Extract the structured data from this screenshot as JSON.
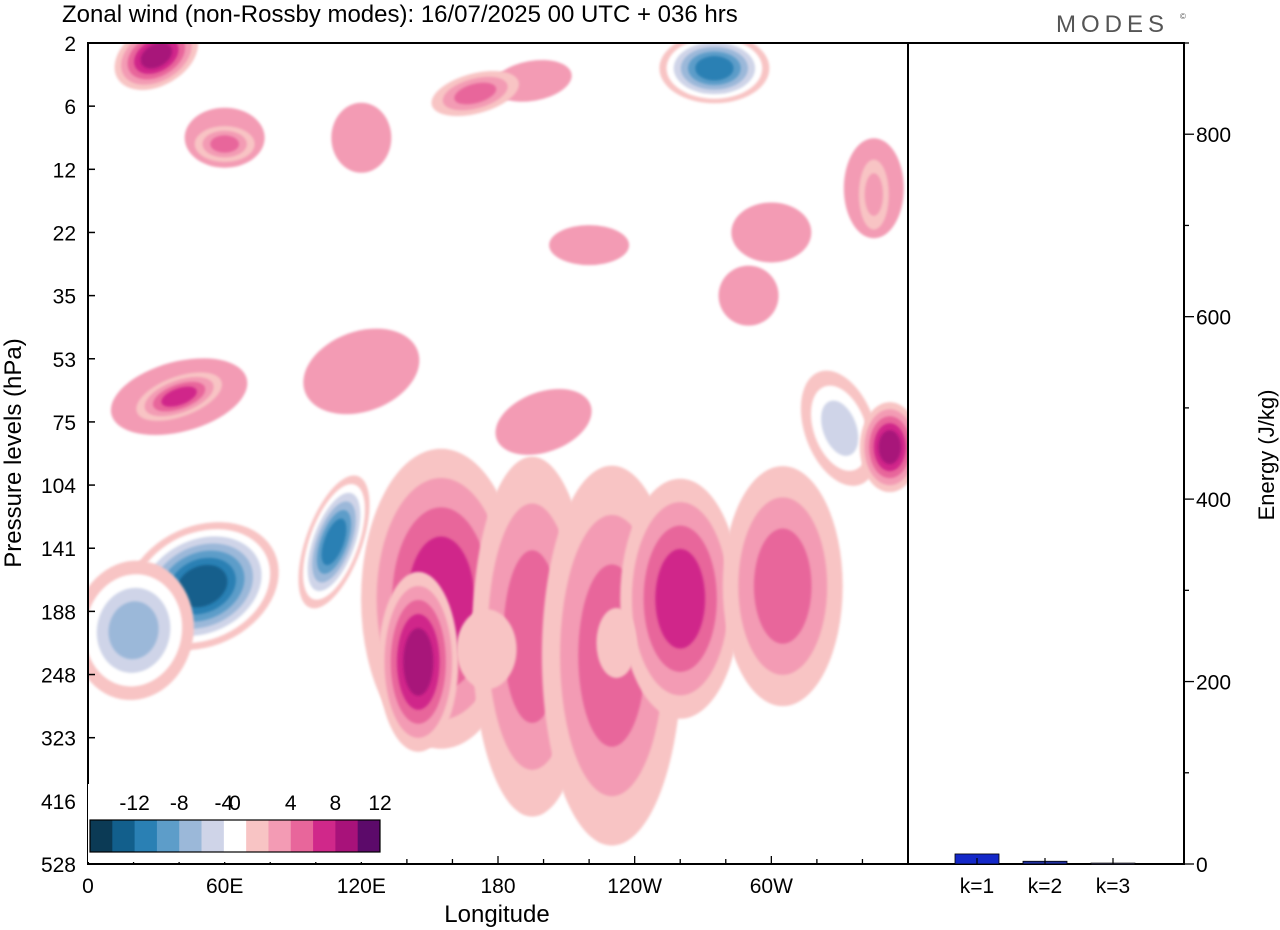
{
  "header": {
    "title": "Zonal wind (non-Rossby modes):  16/07/2025  00 UTC  + 036 hrs",
    "brand": "MODES",
    "brand_mark": "©"
  },
  "chart_data": [
    {
      "type": "heatmap",
      "title": "Zonal wind (non-Rossby modes):  16/07/2025  00 UTC  + 036 hrs",
      "xlabel": "Longitude",
      "ylabel": "Pressure levels (hPa)",
      "x_ticks": [
        "0",
        "60E",
        "120E",
        "180",
        "120W",
        "60W"
      ],
      "x_tick_values": [
        0,
        60,
        120,
        180,
        240,
        300
      ],
      "xlim": [
        0,
        360
      ],
      "y_ticks": [
        "2",
        "6",
        "12",
        "22",
        "35",
        "53",
        "75",
        "104",
        "141",
        "188",
        "248",
        "323",
        "416",
        "528"
      ],
      "y_scale": "model levels (top 2 hPa, bottom 528 hPa)",
      "colorbar": {
        "labels": [
          "-12",
          "-8",
          "-4",
          "0",
          "4",
          "8",
          "12"
        ],
        "levels": [
          -14,
          -12,
          -10,
          -8,
          -6,
          -4,
          -2,
          2,
          4,
          6,
          8,
          10,
          12,
          14
        ],
        "colors": [
          "#0b3a55",
          "#125f8c",
          "#2a80b4",
          "#5d9dc9",
          "#9bb8d9",
          "#cfd4e8",
          "#ffffff",
          "#f8c4c4",
          "#f39bb4",
          "#e8669b",
          "#d0288a",
          "#a8127a",
          "#5c0a6a"
        ],
        "location": "bottom-left"
      },
      "features": [
        {
          "kind": "negative-max",
          "lon": 55,
          "level": "141",
          "value": -14
        },
        {
          "kind": "negative-max",
          "lon": 108,
          "level": "141",
          "value": -12
        },
        {
          "kind": "positive-band",
          "lon_range": [
            130,
            320
          ],
          "level_range": [
            "104",
            "416"
          ],
          "value": 8
        },
        {
          "kind": "positive-max",
          "lon": 352,
          "level": "104",
          "value": 8
        },
        {
          "kind": "negative-max",
          "lon": 275,
          "level": "2",
          "value": -12
        },
        {
          "kind": "positive-max",
          "lon": 30,
          "level": "2",
          "value": 10
        }
      ]
    },
    {
      "type": "bar",
      "ylabel": "Energy (J/kg)",
      "categories": [
        "k=1",
        "k=2",
        "k=3"
      ],
      "values": [
        11,
        3,
        1
      ],
      "colors": [
        "#1428c8",
        "#2030a0",
        "#404060"
      ],
      "ylim": [
        0,
        900
      ],
      "y_ticks": [
        "0",
        "200",
        "400",
        "600",
        "800"
      ],
      "y_tick_values": [
        0,
        200,
        400,
        600,
        800
      ],
      "axis_side": "right"
    }
  ]
}
